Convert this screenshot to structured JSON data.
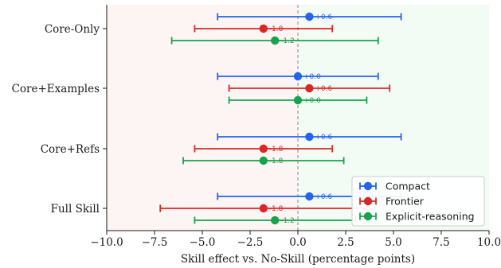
{
  "chart_data": {
    "type": "errorbar",
    "xlabel": "Skill effect vs. No-Skill (percentage points)",
    "xlim": [
      -10.0,
      10.0
    ],
    "xticks": [
      -10.0,
      -7.5,
      -5.0,
      -2.5,
      0.0,
      2.5,
      5.0,
      7.5,
      10.0
    ],
    "xtick_labels": [
      "−10.0",
      "−7.5",
      "−5.0",
      "−2.5",
      "0.0",
      "2.5",
      "5.0",
      "7.5",
      "10.0"
    ],
    "categories": [
      "Core-Only",
      "Core+Examples",
      "Core+Refs",
      "Full Skill"
    ],
    "reference_line": 0.0,
    "background": {
      "negative_color": "#fdf4f4",
      "positive_color": "#f3fbf5"
    },
    "legend_position": "bottom-right",
    "series": [
      {
        "name": "Compact",
        "color": "#2563eb",
        "points": [
          {
            "value": 0.6,
            "low": -4.2,
            "high": 5.4,
            "label": "+0.6"
          },
          {
            "value": 0.0,
            "low": -4.2,
            "high": 4.2,
            "label": "+0.0"
          },
          {
            "value": 0.6,
            "low": -4.2,
            "high": 5.4,
            "label": "+0.6"
          },
          {
            "value": 0.6,
            "low": -4.2,
            "high": 5.4,
            "label": "+0.6"
          }
        ]
      },
      {
        "name": "Frontier",
        "color": "#dc2626",
        "points": [
          {
            "value": -1.8,
            "low": -5.4,
            "high": 1.8,
            "label": "-1.8"
          },
          {
            "value": 0.6,
            "low": -3.6,
            "high": 4.8,
            "label": "+0.6"
          },
          {
            "value": -1.8,
            "low": -5.4,
            "high": 1.8,
            "label": "-1.8"
          },
          {
            "value": -1.8,
            "low": -7.2,
            "high": 3.6,
            "label": "-1.8"
          }
        ]
      },
      {
        "name": "Explicit-reasoning",
        "color": "#16a34a",
        "points": [
          {
            "value": -1.2,
            "low": -6.6,
            "high": 4.2,
            "label": "-1.2"
          },
          {
            "value": 0.0,
            "low": -3.6,
            "high": 3.6,
            "label": "+0.0"
          },
          {
            "value": -1.8,
            "low": -6.0,
            "high": 2.4,
            "label": "-1.8"
          },
          {
            "value": -1.2,
            "low": -5.4,
            "high": 3.0,
            "label": "-1.2"
          }
        ]
      }
    ]
  }
}
